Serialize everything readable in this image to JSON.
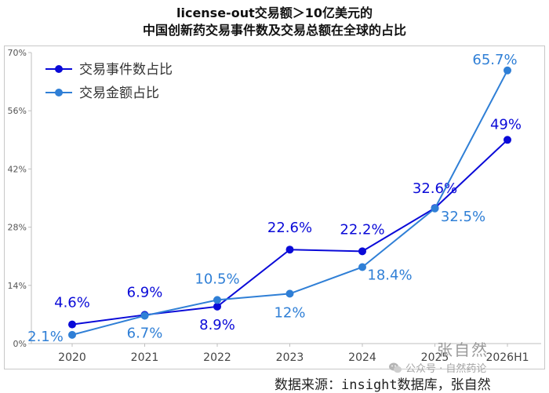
{
  "title": {
    "line1": "license-out交易额＞10亿美元的",
    "line2": "中国创新药交易事件数及交易总额在全球的占比"
  },
  "source": "数据来源：insight数据库，张自然",
  "watermark": {
    "author": "张自然",
    "wechat": "公众号 · 自然药论"
  },
  "colors": {
    "event_share": "#0a0ad8",
    "amount_share": "#2f7fd6"
  },
  "chart_data": {
    "type": "line",
    "categories": [
      "2020",
      "2021",
      "2022",
      "2023",
      "2024",
      "2025",
      "2026H1"
    ],
    "ylim": [
      0,
      70
    ],
    "yticks": [
      "0%",
      "14%",
      "28%",
      "42%",
      "56%",
      "70%"
    ],
    "yticks_values": [
      0,
      14,
      28,
      42,
      56,
      70
    ],
    "grid": false,
    "legend_position": "top-left",
    "series": [
      {
        "name": "交易事件数占比",
        "color": "#0a0ad8",
        "values": [
          4.6,
          6.9,
          8.9,
          22.6,
          22.2,
          32.6,
          49
        ],
        "labels": [
          "4.6%",
          "6.9%",
          "8.9%",
          "22.6%",
          "22.2%",
          "32.6%",
          "49%"
        ]
      },
      {
        "name": "交易金额占比",
        "color": "#2f7fd6",
        "values": [
          2.1,
          6.7,
          10.5,
          12,
          18.4,
          32.5,
          65.7
        ],
        "labels": [
          "2.1%",
          "6.7%",
          "10.5%",
          "12%",
          "18.4%",
          "32.5%",
          "65.7%"
        ]
      }
    ]
  }
}
